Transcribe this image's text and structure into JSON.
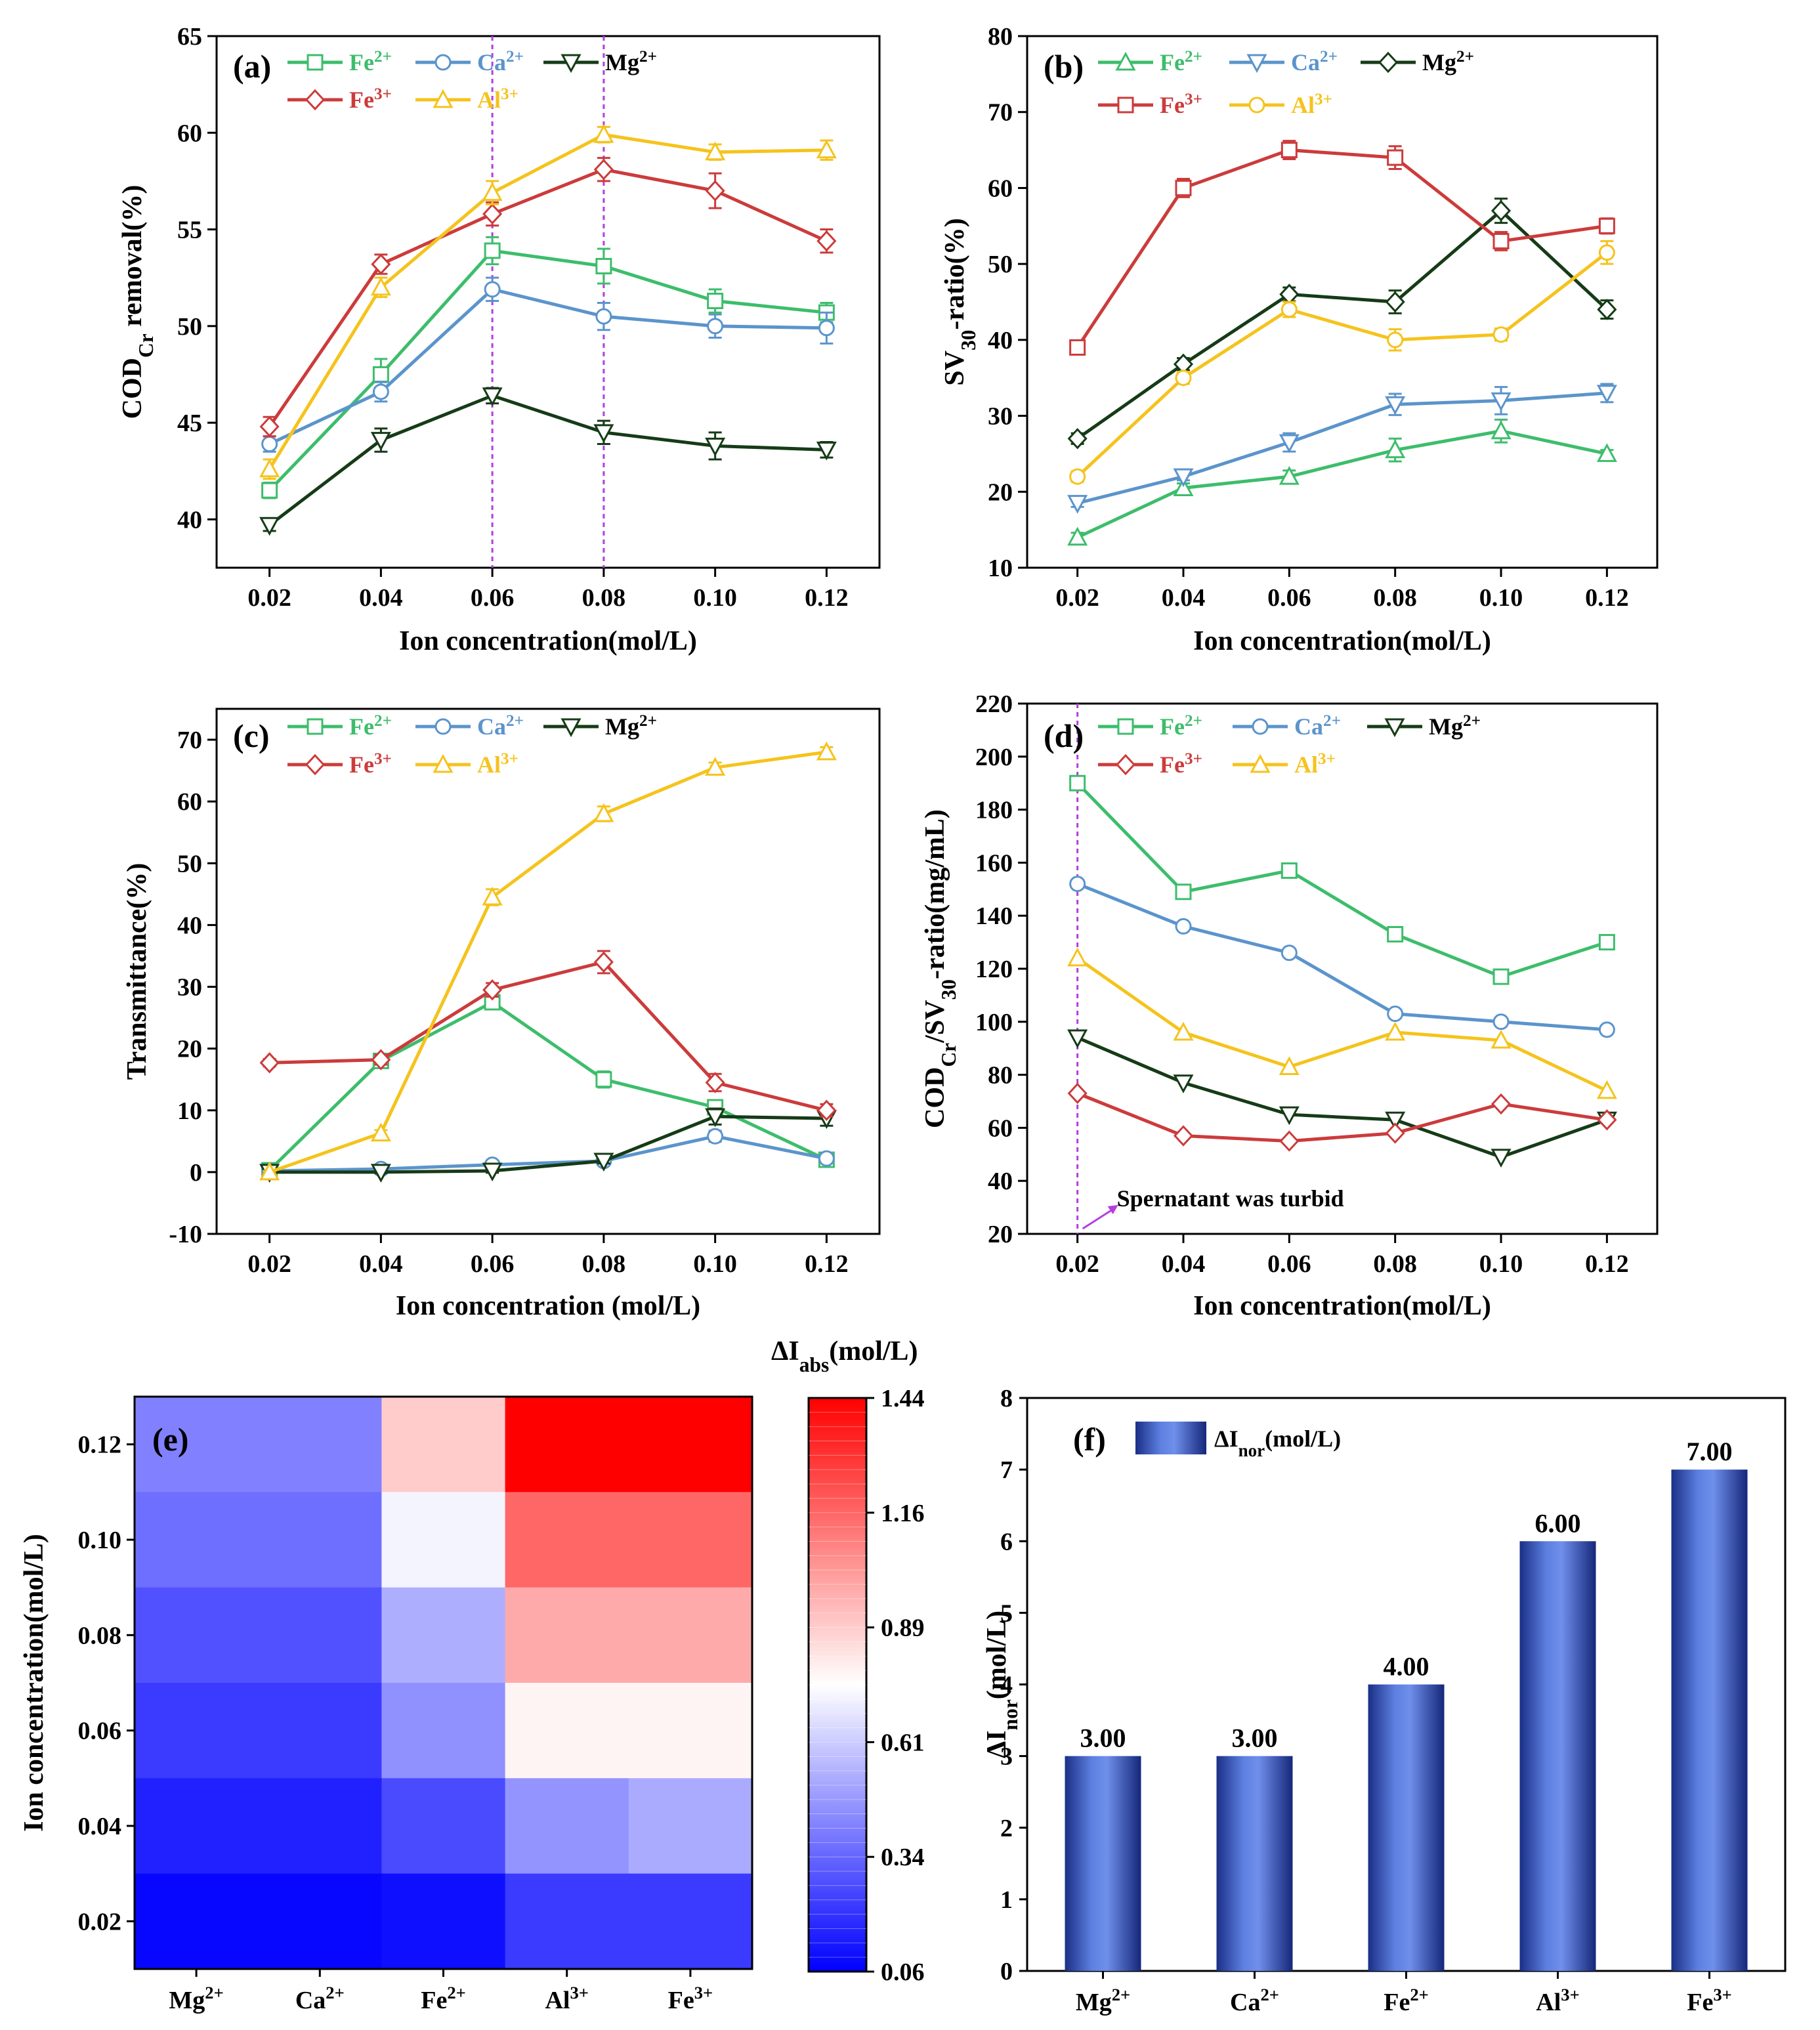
{
  "chart_data": [
    {
      "id": "a",
      "type": "line",
      "panel_label": "(a)",
      "xlabel": "Ion concentration(mol/L)",
      "ylabel": "COD",
      "ylabel_sub": "Cr",
      "ylabel_rest": " removal(%)",
      "x": [
        0.02,
        0.04,
        0.06,
        0.08,
        0.1,
        0.12
      ],
      "x_ticklabels": [
        "0.02",
        "0.04",
        "0.06",
        "0.08",
        "0.10",
        "0.12"
      ],
      "xlim": [
        0.0105,
        0.1295
      ],
      "ylim": [
        37.5,
        65
      ],
      "yticks": [
        40,
        45,
        50,
        55,
        60,
        65
      ],
      "vlines": [
        0.06,
        0.08
      ],
      "legend_rows": [
        [
          "Fe2+",
          "Ca2+",
          "Mg2+"
        ],
        [
          "Fe3+",
          "Al3+"
        ]
      ],
      "series": [
        {
          "name": "Fe2+",
          "ion": "Fe",
          "charge": "2+",
          "color": "#3dbd6b",
          "marker": "square",
          "values": [
            41.5,
            47.5,
            53.9,
            53.1,
            51.3,
            50.7
          ],
          "err": [
            0.4,
            0.8,
            0.7,
            0.9,
            0.6,
            0.5
          ]
        },
        {
          "name": "Ca2+",
          "ion": "Ca",
          "charge": "2+",
          "color": "#5b94cc",
          "marker": "circle",
          "values": [
            43.9,
            46.6,
            51.9,
            50.5,
            50.0,
            49.9
          ],
          "err": [
            0.4,
            0.5,
            0.6,
            0.7,
            0.6,
            0.8
          ]
        },
        {
          "name": "Mg2+",
          "ion": "Mg",
          "charge": "2+",
          "color": "#163b17",
          "marker": "triangle-down",
          "values": [
            39.7,
            44.1,
            46.4,
            44.5,
            43.8,
            43.6
          ],
          "err": [
            0.3,
            0.6,
            0.4,
            0.6,
            0.7,
            0.4
          ]
        },
        {
          "name": "Fe3+",
          "ion": "Fe",
          "charge": "3+",
          "color": "#cc3b3b",
          "marker": "diamond",
          "values": [
            44.8,
            53.2,
            55.8,
            58.1,
            57.0,
            54.4
          ],
          "err": [
            0.5,
            0.5,
            0.6,
            0.6,
            0.9,
            0.6
          ]
        },
        {
          "name": "Al3+",
          "ion": "Al",
          "charge": "3+",
          "color": "#f5c31c",
          "marker": "triangle-up",
          "values": [
            42.6,
            52.0,
            56.9,
            59.9,
            59.0,
            59.1
          ],
          "err": [
            0.5,
            0.5,
            0.6,
            0.4,
            0.4,
            0.5
          ]
        }
      ]
    },
    {
      "id": "b",
      "type": "line",
      "panel_label": "(b)",
      "xlabel": "Ion concentration(mol/L)",
      "ylabel": "SV",
      "ylabel_sub": "30",
      "ylabel_rest": "-ratio(%)",
      "x": [
        0.02,
        0.04,
        0.06,
        0.08,
        0.1,
        0.12
      ],
      "x_ticklabels": [
        "0.02",
        "0.04",
        "0.06",
        "0.08",
        "0.10",
        "0.12"
      ],
      "xlim": [
        0.0105,
        0.1295
      ],
      "ylim": [
        10,
        80
      ],
      "yticks": [
        10,
        20,
        30,
        40,
        50,
        60,
        70,
        80
      ],
      "vlines": [],
      "legend_rows": [
        [
          "Fe2+",
          "Ca2+",
          "Mg2+"
        ],
        [
          "Fe3+",
          "Al3+"
        ]
      ],
      "series": [
        {
          "name": "Fe2+",
          "ion": "Fe",
          "charge": "2+",
          "color": "#3dbd6b",
          "marker": "triangle-up",
          "values": [
            14,
            20.5,
            22,
            25.5,
            28,
            25
          ],
          "err": [
            0.6,
            0.6,
            0.8,
            1.5,
            1.5,
            0.5
          ]
        },
        {
          "name": "Ca2+",
          "ion": "Ca",
          "charge": "2+",
          "color": "#5b94cc",
          "marker": "triangle-down",
          "values": [
            18.5,
            22,
            26.5,
            31.5,
            32,
            33
          ],
          "err": [
            0.5,
            0.5,
            1.2,
            1.4,
            1.8,
            1.2
          ]
        },
        {
          "name": "Mg2+",
          "ion": "Mg",
          "charge": "2+",
          "color": "#163b17",
          "marker": "diamond",
          "values": [
            27,
            36.8,
            46,
            45,
            57,
            44
          ],
          "err": [
            0.7,
            0.8,
            0.9,
            1.5,
            1.6,
            1.2
          ]
        },
        {
          "name": "Fe3+",
          "ion": "Fe",
          "charge": "3+",
          "color": "#cc3b3b",
          "marker": "square",
          "values": [
            39,
            60,
            65,
            64,
            53,
            55
          ],
          "err": [
            0.9,
            1.2,
            1.2,
            1.5,
            1.2,
            1.0
          ]
        },
        {
          "name": "Al3+",
          "ion": "Al",
          "charge": "3+",
          "color": "#f5c31c",
          "marker": "circle",
          "values": [
            22,
            35,
            44,
            40,
            40.7,
            51.5
          ],
          "err": [
            0.7,
            0.8,
            1.0,
            1.4,
            0.8,
            1.5
          ]
        }
      ]
    },
    {
      "id": "c",
      "type": "line",
      "panel_label": "(c)",
      "xlabel": "Ion concentration (mol/L)",
      "ylabel": "Transmittance(%)",
      "ylabel_sub": "",
      "ylabel_rest": "",
      "x": [
        0.02,
        0.04,
        0.06,
        0.08,
        0.1,
        0.12
      ],
      "x_ticklabels": [
        "0.02",
        "0.04",
        "0.06",
        "0.08",
        "0.10",
        "0.12"
      ],
      "xlim": [
        0.0105,
        0.1295
      ],
      "ylim": [
        -10,
        75
      ],
      "yticks": [
        -10,
        0,
        10,
        20,
        30,
        40,
        50,
        60,
        70
      ],
      "vlines": [],
      "legend_rows": [
        [
          "Fe2+",
          "Ca2+",
          "Mg2+"
        ],
        [
          "Fe3+",
          "Al3+"
        ]
      ],
      "series": [
        {
          "name": "Fe2+",
          "ion": "Fe",
          "charge": "2+",
          "color": "#3dbd6b",
          "marker": "square",
          "values": [
            0.3,
            18,
            27.5,
            15,
            10.5,
            2
          ],
          "err": [
            0.3,
            0.8,
            1.0,
            1.3,
            1.0,
            0.5
          ]
        },
        {
          "name": "Ca2+",
          "ion": "Ca",
          "charge": "2+",
          "color": "#5b94cc",
          "marker": "circle",
          "values": [
            0.2,
            0.5,
            1.2,
            1.8,
            5.8,
            2.2
          ],
          "err": [
            0.2,
            0.3,
            0.4,
            0.4,
            0.9,
            0.6
          ]
        },
        {
          "name": "Mg2+",
          "ion": "Mg",
          "charge": "2+",
          "color": "#163b17",
          "marker": "triangle-down",
          "values": [
            0,
            0,
            0.2,
            1.8,
            9,
            8.7
          ],
          "err": [
            0.2,
            0.2,
            0.3,
            0.4,
            1.3,
            1.2
          ]
        },
        {
          "name": "Fe3+",
          "ion": "Fe",
          "charge": "3+",
          "color": "#cc3b3b",
          "marker": "diamond",
          "values": [
            17.7,
            18.2,
            29.5,
            34,
            14.5,
            10
          ],
          "err": [
            0.6,
            0.8,
            1.1,
            1.8,
            1.4,
            1.0
          ]
        },
        {
          "name": "Al3+",
          "ion": "Al",
          "charge": "3+",
          "color": "#f5c31c",
          "marker": "triangle-up",
          "values": [
            0,
            6.3,
            44.5,
            58,
            65.5,
            68
          ],
          "err": [
            0.2,
            0.5,
            1.3,
            1.2,
            0.8,
            0.8
          ]
        }
      ]
    },
    {
      "id": "d",
      "type": "line",
      "panel_label": "(d)",
      "xlabel": "Ion concentration(mol/L)",
      "ylabel": "COD",
      "ylabel_sub": "Cr",
      "ylabel_rest": "/SV",
      "ylabel_sub2": "30",
      "ylabel_rest2": "-ratio(mg/mL)",
      "x": [
        0.02,
        0.04,
        0.06,
        0.08,
        0.1,
        0.12
      ],
      "x_ticklabels": [
        "0.02",
        "0.04",
        "0.06",
        "0.08",
        "0.10",
        "0.12"
      ],
      "xlim": [
        0.0105,
        0.1295
      ],
      "ylim": [
        20,
        220
      ],
      "yticks": [
        20,
        40,
        60,
        80,
        100,
        120,
        140,
        160,
        180,
        200,
        220
      ],
      "vlines": [
        0.02
      ],
      "annotation": "Spernatant was turbid",
      "legend_rows": [
        [
          "Fe2+",
          "Ca2+",
          "Mg2+"
        ],
        [
          "Fe3+",
          "Al3+"
        ]
      ],
      "series": [
        {
          "name": "Fe2+",
          "ion": "Fe",
          "charge": "2+",
          "color": "#3dbd6b",
          "marker": "square",
          "values": [
            190,
            149,
            157,
            133,
            117,
            130
          ]
        },
        {
          "name": "Ca2+",
          "ion": "Ca",
          "charge": "2+",
          "color": "#5b94cc",
          "marker": "circle",
          "values": [
            152,
            136,
            126,
            103,
            100,
            97
          ]
        },
        {
          "name": "Mg2+",
          "ion": "Mg",
          "charge": "2+",
          "color": "#163b17",
          "marker": "triangle-down",
          "values": [
            94,
            77,
            65,
            63,
            49,
            63
          ]
        },
        {
          "name": "Fe3+",
          "ion": "Fe",
          "charge": "3+",
          "color": "#cc3b3b",
          "marker": "diamond",
          "values": [
            73,
            57,
            55,
            58,
            69,
            63
          ]
        },
        {
          "name": "Al3+",
          "ion": "Al",
          "charge": "3+",
          "color": "#f5c31c",
          "marker": "triangle-up",
          "values": [
            124,
            96,
            83,
            96,
            93,
            74
          ]
        }
      ]
    },
    {
      "id": "e",
      "type": "heatmap",
      "panel_label": "(e)",
      "title": "ΔI",
      "title_sub": "abs",
      "title_rest": "(mol/L)",
      "ylabel": "Ion concentration(mol/L)",
      "columns": [
        {
          "ion": "Mg",
          "charge": "2+"
        },
        {
          "ion": "Ca",
          "charge": "2+"
        },
        {
          "ion": "Fe",
          "charge": "2+"
        },
        {
          "ion": "Al",
          "charge": "3+"
        },
        {
          "ion": "Fe",
          "charge": "3+"
        }
      ],
      "rows": [
        "0.12",
        "0.10",
        "0.08",
        "0.06",
        "0.04",
        "0.02"
      ],
      "values": [
        [
          0.41,
          0.41,
          0.89,
          1.44,
          1.44
        ],
        [
          0.36,
          0.36,
          0.72,
          1.16,
          1.16
        ],
        [
          0.28,
          0.28,
          0.53,
          0.98,
          0.98
        ],
        [
          0.22,
          0.22,
          0.45,
          0.78,
          0.78
        ],
        [
          0.15,
          0.15,
          0.26,
          0.46,
          0.52
        ],
        [
          0.08,
          0.08,
          0.1,
          0.22,
          0.22
        ]
      ],
      "colorbar": {
        "min": 0.06,
        "max": 1.44,
        "ticks": [
          "1.44",
          "1.16",
          "0.89",
          "0.61",
          "0.34",
          "0.06"
        ],
        "low_color": "#0000ff",
        "mid_color": "#ffffff",
        "high_color": "#ff0000"
      }
    },
    {
      "id": "f",
      "type": "bar",
      "panel_label": "(f)",
      "ylabel": "ΔI",
      "ylabel_sub": "nor",
      "ylabel_rest": "(mol/L)",
      "legend": "ΔI",
      "legend_sub": "nor",
      "legend_rest": "(mol/L)",
      "categories": [
        {
          "ion": "Mg",
          "charge": "2+"
        },
        {
          "ion": "Ca",
          "charge": "2+"
        },
        {
          "ion": "Fe",
          "charge": "2+"
        },
        {
          "ion": "Al",
          "charge": "3+"
        },
        {
          "ion": "Fe",
          "charge": "3+"
        }
      ],
      "values": [
        3,
        3,
        4,
        6,
        7
      ],
      "value_labels": [
        "3.00",
        "3.00",
        "4.00",
        "6.00",
        "7.00"
      ],
      "ylim": [
        0,
        8
      ],
      "yticks": [
        0,
        1,
        2,
        3,
        4,
        5,
        6,
        7,
        8
      ],
      "bar_color": "#3f5fc4"
    }
  ]
}
